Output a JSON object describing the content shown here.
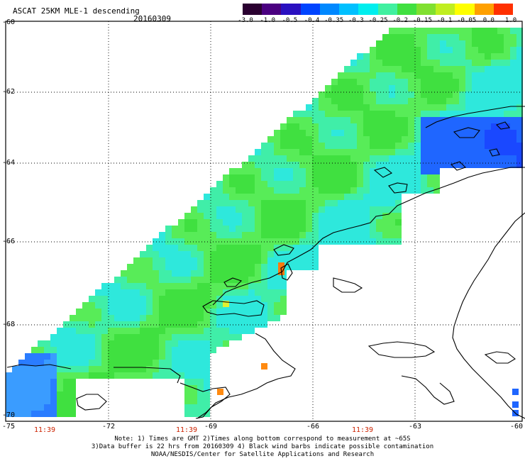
{
  "header": {
    "title": "ASCAT 25KM MLE-1 descending",
    "date": "20160309"
  },
  "colorbar": {
    "colors": [
      "#2a0030",
      "#4a0080",
      "#2a10c0",
      "#0044ff",
      "#0088ff",
      "#00c0ff",
      "#00eeee",
      "#40f0a0",
      "#40e040",
      "#80e030",
      "#c0ee20",
      "#ffff00",
      "#ffa000",
      "#ff3000"
    ],
    "labels": [
      "-3.0",
      "-1.0",
      "-0.5",
      "-0.4",
      "-0.35",
      "-0.3",
      "-0.25",
      "-0.2",
      "-0.15",
      "-0.1",
      "-0.05",
      "0.0",
      "1.0"
    ]
  },
  "axes": {
    "y_labels": [
      "-60",
      "-62",
      "-64",
      "-66",
      "-68",
      "-70"
    ],
    "x_labels": [
      "-75",
      "-72",
      "-69",
      "-66",
      "-63",
      "-60"
    ],
    "time_labels": [
      "11:39",
      "11:39",
      "11:39"
    ]
  },
  "notes": [
    "Note: 1) Times are GMT 2)Times along bottom correspond to measurement at ~65S",
    "3)Data buffer is 22 hrs from 20160309 4) Black wind barbs indicate possible contamination",
    "NOAA/NESDIS/Center for Satellite Applications and Research"
  ]
}
